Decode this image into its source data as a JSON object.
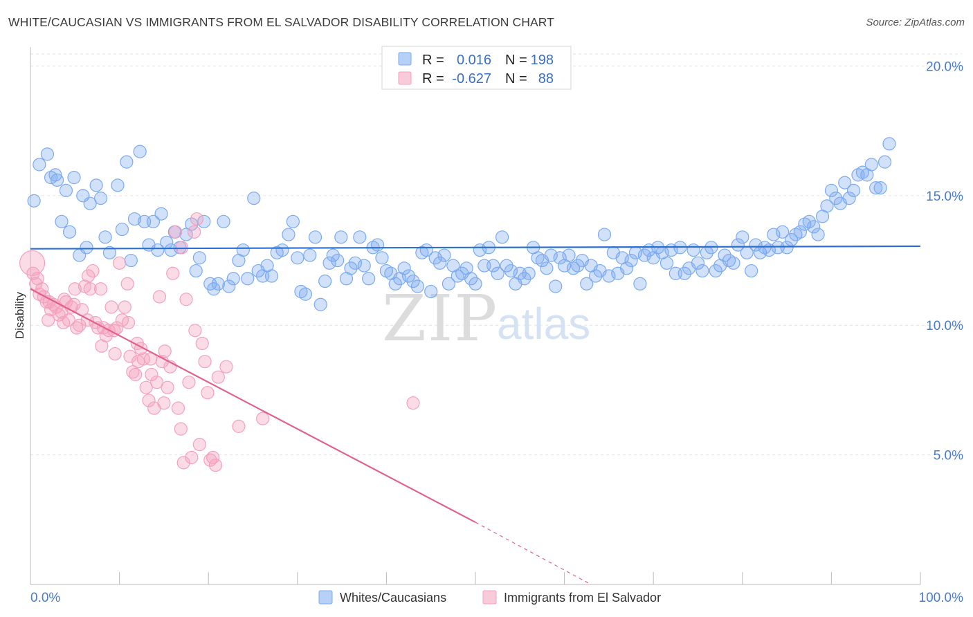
{
  "header": {
    "title": "WHITE/CAUCASIAN VS IMMIGRANTS FROM EL SALVADOR DISABILITY CORRELATION CHART",
    "source": "Source: ZipAtlas.com"
  },
  "watermark": {
    "part1": "ZIP",
    "part2": "atlas"
  },
  "legend": {
    "rows": [
      {
        "r_label": "R =",
        "r_value": "0.016",
        "n_label": "N =",
        "n_value": "198",
        "color": "#7aaaf0"
      },
      {
        "r_label": "R =",
        "r_value": "-0.627",
        "n_label": "N =",
        "n_value": "88",
        "color": "#f4a0bc"
      }
    ]
  },
  "bottom_legend": [
    {
      "label": "Whites/Caucasians",
      "color": "#7aaaf0"
    },
    {
      "label": "Immigrants from El Salvador",
      "color": "#f4a0bc"
    }
  ],
  "chart_data": {
    "type": "scatter",
    "title": "WHITE/CAUCASIAN VS IMMIGRANTS FROM EL SALVADOR DISABILITY CORRELATION CHART",
    "xlabel": "",
    "ylabel": "Disability",
    "xlim": [
      0,
      100
    ],
    "ylim": [
      0,
      21
    ],
    "x_tick_labels": [
      "0.0%",
      "100.0%"
    ],
    "y_ticks": [
      5,
      10,
      15,
      20
    ],
    "y_tick_labels": [
      "5.0%",
      "10.0%",
      "15.0%",
      "20.0%"
    ],
    "grid": true,
    "legend_position": "top-center",
    "series": [
      {
        "name": "Whites/Caucasians",
        "color": "#7aaaf0",
        "line_color": "#2b6fcf",
        "trend": {
          "x": [
            0,
            100
          ],
          "y": [
            12.95,
            13.05
          ]
        },
        "points": [
          [
            0.4,
            14.8
          ],
          [
            1.0,
            16.2
          ],
          [
            1.9,
            16.6
          ],
          [
            2.3,
            15.7
          ],
          [
            2.8,
            15.8
          ],
          [
            3.5,
            14.0
          ],
          [
            4.0,
            15.2
          ],
          [
            4.4,
            13.6
          ],
          [
            4.9,
            15.7
          ],
          [
            5.5,
            12.7
          ],
          [
            5.9,
            15.0
          ],
          [
            6.3,
            13.0
          ],
          [
            6.7,
            14.7
          ],
          [
            7.4,
            15.4
          ],
          [
            7.9,
            14.9
          ],
          [
            8.4,
            13.4
          ],
          [
            8.9,
            12.8
          ],
          [
            9.8,
            15.4
          ],
          [
            10.3,
            13.7
          ],
          [
            10.8,
            16.3
          ],
          [
            11.3,
            12.5
          ],
          [
            11.7,
            14.1
          ],
          [
            12.3,
            16.7
          ],
          [
            12.8,
            14.0
          ],
          [
            13.3,
            13.1
          ],
          [
            13.8,
            14.0
          ],
          [
            14.3,
            12.9
          ],
          [
            14.7,
            14.3
          ],
          [
            15.3,
            13.2
          ],
          [
            15.8,
            12.9
          ],
          [
            16.2,
            13.6
          ],
          [
            16.8,
            13.0
          ],
          [
            17.5,
            13.5
          ],
          [
            18.1,
            13.9
          ],
          [
            18.6,
            12.1
          ],
          [
            19.0,
            12.6
          ],
          [
            19.5,
            14.0
          ],
          [
            20.2,
            11.6
          ],
          [
            20.6,
            11.4
          ],
          [
            21.1,
            11.6
          ],
          [
            21.7,
            14.0
          ],
          [
            22.3,
            11.5
          ],
          [
            22.8,
            11.8
          ],
          [
            23.4,
            12.5
          ],
          [
            23.9,
            12.9
          ],
          [
            24.4,
            11.8
          ],
          [
            25.1,
            14.9
          ],
          [
            25.6,
            12.1
          ],
          [
            26.1,
            11.9
          ],
          [
            26.6,
            12.3
          ],
          [
            27.1,
            11.9
          ],
          [
            27.7,
            12.8
          ],
          [
            28.3,
            12.9
          ],
          [
            29.0,
            13.5
          ],
          [
            29.5,
            14.0
          ],
          [
            30.0,
            12.6
          ],
          [
            30.4,
            11.3
          ],
          [
            30.9,
            11.2
          ],
          [
            31.4,
            12.7
          ],
          [
            32.0,
            13.4
          ],
          [
            32.6,
            10.8
          ],
          [
            33.1,
            11.7
          ],
          [
            33.6,
            12.4
          ],
          [
            34.0,
            12.7
          ],
          [
            34.5,
            12.5
          ],
          [
            34.9,
            13.4
          ],
          [
            35.5,
            11.8
          ],
          [
            36.0,
            12.2
          ],
          [
            36.5,
            12.4
          ],
          [
            37.0,
            13.4
          ],
          [
            37.5,
            12.3
          ],
          [
            38.0,
            11.8
          ],
          [
            38.5,
            13.0
          ],
          [
            39.0,
            13.1
          ],
          [
            39.5,
            12.6
          ],
          [
            40.0,
            12.1
          ],
          [
            40.5,
            12.0
          ],
          [
            41.0,
            11.6
          ],
          [
            41.5,
            11.8
          ],
          [
            42.0,
            12.2
          ],
          [
            42.5,
            11.9
          ],
          [
            43.0,
            11.7
          ],
          [
            43.5,
            11.5
          ],
          [
            44.0,
            12.8
          ],
          [
            44.5,
            12.9
          ],
          [
            45.0,
            11.3
          ],
          [
            45.5,
            12.6
          ],
          [
            46.0,
            12.4
          ],
          [
            46.5,
            12.7
          ],
          [
            47.0,
            11.6
          ],
          [
            47.5,
            12.3
          ],
          [
            48.0,
            11.9
          ],
          [
            48.5,
            12.0
          ],
          [
            49.0,
            12.2
          ],
          [
            49.5,
            11.8
          ],
          [
            50.0,
            11.6
          ],
          [
            50.5,
            12.9
          ],
          [
            51.0,
            12.3
          ],
          [
            51.5,
            13.0
          ],
          [
            52.0,
            12.3
          ],
          [
            52.5,
            12.0
          ],
          [
            53.0,
            13.4
          ],
          [
            53.5,
            12.3
          ],
          [
            54.0,
            12.1
          ],
          [
            54.5,
            11.6
          ],
          [
            55.0,
            12.0
          ],
          [
            55.5,
            11.8
          ],
          [
            56.0,
            12.0
          ],
          [
            56.5,
            13.0
          ],
          [
            57.0,
            12.6
          ],
          [
            57.5,
            12.5
          ],
          [
            58.0,
            12.2
          ],
          [
            58.5,
            12.7
          ],
          [
            59.0,
            11.5
          ],
          [
            59.5,
            12.6
          ],
          [
            60.0,
            12.3
          ],
          [
            60.5,
            12.7
          ],
          [
            61.0,
            12.2
          ],
          [
            61.5,
            12.3
          ],
          [
            62.0,
            12.5
          ],
          [
            62.5,
            11.6
          ],
          [
            63.0,
            12.3
          ],
          [
            63.5,
            11.9
          ],
          [
            64.0,
            12.1
          ],
          [
            64.5,
            13.5
          ],
          [
            65.0,
            11.9
          ],
          [
            65.5,
            12.8
          ],
          [
            66.0,
            12.0
          ],
          [
            66.5,
            12.6
          ],
          [
            67.0,
            12.2
          ],
          [
            67.5,
            12.5
          ],
          [
            68.0,
            12.8
          ],
          [
            68.5,
            11.6
          ],
          [
            69.0,
            12.7
          ],
          [
            69.5,
            12.9
          ],
          [
            70.0,
            12.6
          ],
          [
            70.5,
            13.0
          ],
          [
            71.0,
            12.8
          ],
          [
            71.5,
            12.4
          ],
          [
            72.0,
            12.9
          ],
          [
            72.5,
            12.0
          ],
          [
            73.0,
            13.0
          ],
          [
            73.5,
            12.0
          ],
          [
            74.0,
            12.2
          ],
          [
            74.5,
            12.9
          ],
          [
            75.0,
            12.4
          ],
          [
            75.5,
            12.1
          ],
          [
            76.0,
            12.8
          ],
          [
            76.5,
            13.0
          ],
          [
            77.0,
            12.1
          ],
          [
            77.5,
            12.3
          ],
          [
            78.0,
            12.7
          ],
          [
            78.5,
            12.5
          ],
          [
            79.0,
            12.4
          ],
          [
            79.5,
            13.1
          ],
          [
            80.0,
            13.4
          ],
          [
            80.5,
            12.8
          ],
          [
            81.0,
            12.1
          ],
          [
            81.5,
            13.1
          ],
          [
            82.0,
            12.8
          ],
          [
            82.5,
            13.0
          ],
          [
            83.0,
            12.9
          ],
          [
            83.5,
            13.5
          ],
          [
            84.0,
            13.0
          ],
          [
            84.5,
            13.6
          ],
          [
            85.0,
            13.0
          ],
          [
            85.5,
            13.3
          ],
          [
            86.0,
            13.5
          ],
          [
            86.5,
            13.6
          ],
          [
            87.0,
            13.9
          ],
          [
            87.5,
            14.0
          ],
          [
            88.0,
            13.8
          ],
          [
            88.5,
            13.5
          ],
          [
            89.0,
            14.2
          ],
          [
            89.5,
            14.6
          ],
          [
            90.0,
            15.2
          ],
          [
            90.5,
            14.9
          ],
          [
            91.0,
            14.7
          ],
          [
            91.5,
            15.5
          ],
          [
            92.0,
            14.9
          ],
          [
            92.5,
            15.2
          ],
          [
            93.0,
            15.8
          ],
          [
            93.5,
            15.9
          ],
          [
            94.0,
            15.8
          ],
          [
            94.5,
            16.2
          ],
          [
            95.0,
            15.3
          ],
          [
            95.5,
            15.3
          ],
          [
            96.0,
            16.3
          ],
          [
            96.5,
            17.0
          ],
          [
            3.0,
            15.6
          ]
        ]
      },
      {
        "name": "Immigrants from El Salvador",
        "color": "#f4a0bc",
        "line_color": "#e0608e",
        "trend": {
          "x": [
            0,
            50
          ],
          "y": [
            11.4,
            2.4
          ]
        },
        "trend_dashed": {
          "x": [
            50,
            63
          ],
          "y": [
            2.4,
            0.0
          ]
        },
        "points": [
          [
            0.2,
            12.4
          ],
          [
            0.3,
            12.0
          ],
          [
            0.6,
            11.6
          ],
          [
            0.8,
            11.8
          ],
          [
            1.0,
            11.2
          ],
          [
            1.3,
            11.4
          ],
          [
            1.5,
            11.1
          ],
          [
            1.8,
            10.9
          ],
          [
            2.0,
            10.2
          ],
          [
            2.3,
            10.6
          ],
          [
            2.6,
            10.8
          ],
          [
            2.9,
            10.7
          ],
          [
            3.2,
            10.4
          ],
          [
            3.5,
            10.5
          ],
          [
            3.8,
            11.0
          ],
          [
            4.0,
            10.9
          ],
          [
            4.3,
            10.2
          ],
          [
            4.6,
            10.7
          ],
          [
            4.9,
            10.8
          ],
          [
            5.2,
            9.9
          ],
          [
            5.5,
            10.0
          ],
          [
            5.8,
            10.6
          ],
          [
            6.1,
            11.5
          ],
          [
            6.4,
            10.2
          ],
          [
            6.7,
            11.4
          ],
          [
            7.0,
            12.1
          ],
          [
            7.3,
            10.1
          ],
          [
            7.6,
            9.9
          ],
          [
            7.9,
            11.4
          ],
          [
            8.2,
            9.9
          ],
          [
            8.5,
            9.6
          ],
          [
            8.8,
            9.8
          ],
          [
            9.1,
            10.7
          ],
          [
            9.4,
            9.8
          ],
          [
            9.7,
            9.9
          ],
          [
            10.0,
            12.4
          ],
          [
            10.3,
            10.2
          ],
          [
            10.6,
            10.7
          ],
          [
            10.9,
            11.6
          ],
          [
            11.2,
            8.8
          ],
          [
            11.5,
            8.2
          ],
          [
            11.8,
            8.1
          ],
          [
            12.1,
            8.6
          ],
          [
            12.4,
            9.1
          ],
          [
            12.7,
            8.7
          ],
          [
            13.0,
            7.6
          ],
          [
            13.3,
            7.1
          ],
          [
            13.6,
            8.1
          ],
          [
            13.9,
            6.8
          ],
          [
            14.2,
            7.8
          ],
          [
            14.5,
            11.1
          ],
          [
            14.8,
            8.6
          ],
          [
            15.1,
            9.0
          ],
          [
            15.4,
            7.6
          ],
          [
            15.7,
            8.4
          ],
          [
            16.0,
            12.0
          ],
          [
            16.3,
            13.6
          ],
          [
            16.6,
            6.8
          ],
          [
            16.9,
            6.0
          ],
          [
            17.2,
            4.7
          ],
          [
            17.5,
            11.0
          ],
          [
            17.8,
            7.8
          ],
          [
            18.1,
            4.9
          ],
          [
            18.4,
            13.6
          ],
          [
            18.7,
            14.1
          ],
          [
            19.0,
            5.4
          ],
          [
            19.3,
            9.3
          ],
          [
            19.6,
            8.6
          ],
          [
            19.9,
            7.4
          ],
          [
            20.2,
            4.8
          ],
          [
            20.5,
            4.9
          ],
          [
            20.8,
            4.6
          ],
          [
            21.1,
            8.0
          ],
          [
            22.0,
            8.4
          ],
          [
            23.4,
            6.1
          ],
          [
            26.1,
            6.4
          ],
          [
            43.0,
            7.0
          ],
          [
            6.5,
            11.9
          ],
          [
            8.0,
            9.2
          ],
          [
            9.5,
            8.9
          ],
          [
            11.0,
            10.1
          ],
          [
            12.0,
            9.3
          ],
          [
            13.5,
            8.7
          ],
          [
            15.0,
            7.0
          ],
          [
            17.0,
            13.0
          ],
          [
            18.5,
            9.8
          ],
          [
            3.7,
            10.1
          ],
          [
            5.0,
            11.4
          ],
          [
            2.1,
            10.9
          ]
        ]
      }
    ]
  }
}
